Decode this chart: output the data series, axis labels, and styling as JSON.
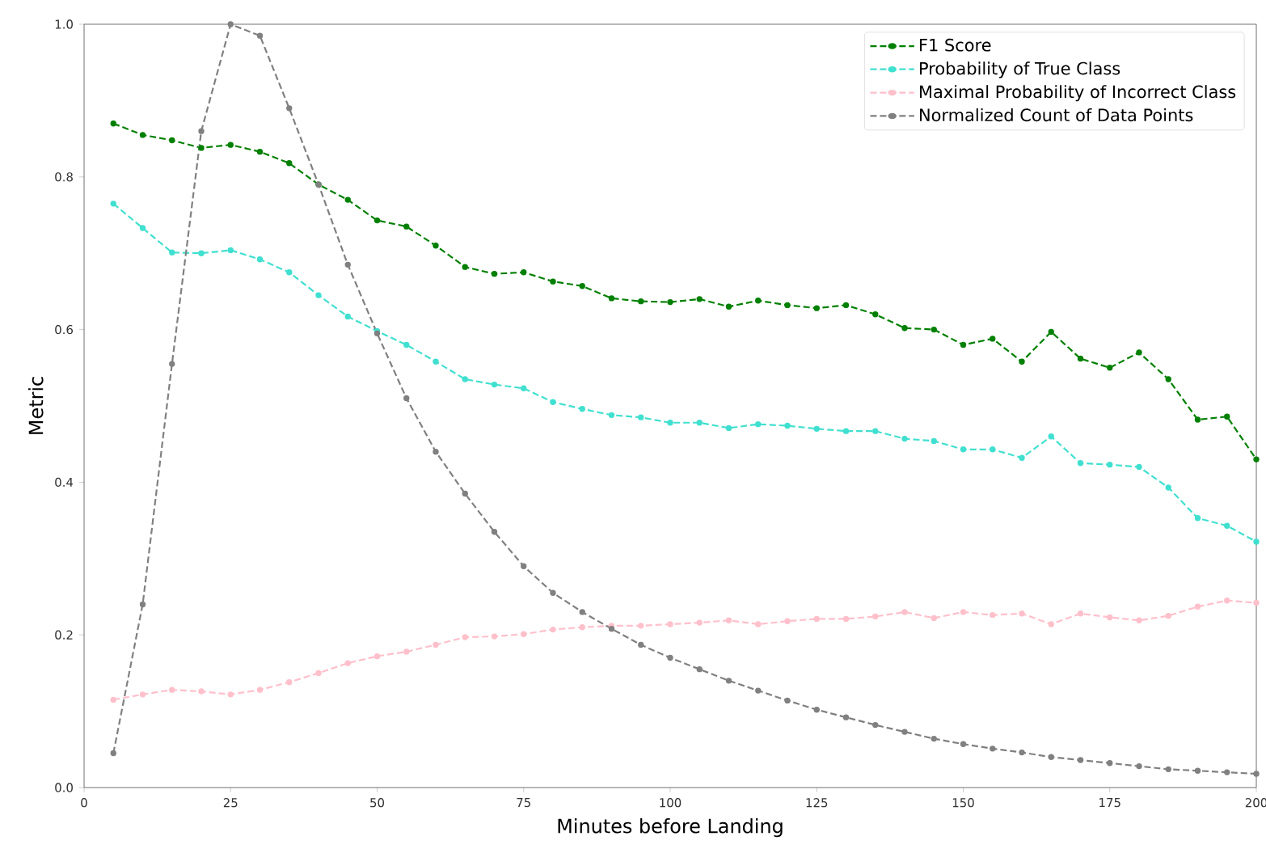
{
  "chart_data": {
    "type": "line",
    "xlabel": "Minutes before Landing",
    "ylabel": "Metric",
    "x": [
      5,
      10,
      15,
      20,
      25,
      30,
      35,
      40,
      45,
      50,
      55,
      60,
      65,
      70,
      75,
      80,
      85,
      90,
      95,
      100,
      105,
      110,
      115,
      120,
      125,
      130,
      135,
      140,
      145,
      150,
      155,
      160,
      165,
      170,
      175,
      180,
      185,
      190,
      195,
      200
    ],
    "series": [
      {
        "name": "F1 Score",
        "color": "#008000",
        "values": [
          0.87,
          0.855,
          0.848,
          0.838,
          0.842,
          0.833,
          0.818,
          0.79,
          0.77,
          0.743,
          0.735,
          0.71,
          0.682,
          0.673,
          0.675,
          0.663,
          0.657,
          0.641,
          0.637,
          0.636,
          0.64,
          0.63,
          0.638,
          0.632,
          0.628,
          0.632,
          0.62,
          0.602,
          0.6,
          0.58,
          0.588,
          0.558,
          0.597,
          0.562,
          0.55,
          0.57,
          0.535,
          0.482,
          0.486,
          0.43
        ]
      },
      {
        "name": "Probability of True Class",
        "color": "#40e0d0",
        "values": [
          0.765,
          0.733,
          0.701,
          0.7,
          0.704,
          0.692,
          0.675,
          0.645,
          0.617,
          0.598,
          0.58,
          0.558,
          0.535,
          0.528,
          0.523,
          0.505,
          0.496,
          0.488,
          0.485,
          0.478,
          0.478,
          0.471,
          0.476,
          0.474,
          0.47,
          0.467,
          0.467,
          0.457,
          0.454,
          0.443,
          0.443,
          0.432,
          0.46,
          0.425,
          0.423,
          0.42,
          0.393,
          0.353,
          0.343,
          0.322
        ]
      },
      {
        "name": "Maximal Probability of Incorrect Class",
        "color": "#ffc0cb",
        "values": [
          0.115,
          0.122,
          0.128,
          0.126,
          0.122,
          0.128,
          0.138,
          0.15,
          0.163,
          0.172,
          0.178,
          0.187,
          0.197,
          0.198,
          0.201,
          0.207,
          0.21,
          0.212,
          0.212,
          0.214,
          0.216,
          0.219,
          0.214,
          0.218,
          0.221,
          0.221,
          0.224,
          0.23,
          0.222,
          0.23,
          0.226,
          0.228,
          0.214,
          0.228,
          0.223,
          0.219,
          0.225,
          0.237,
          0.245,
          0.242
        ]
      },
      {
        "name": "Normalized Count of Data Points",
        "color": "#808080",
        "values": [
          0.045,
          0.24,
          0.555,
          0.86,
          1.0,
          0.985,
          0.89,
          0.79,
          0.685,
          0.595,
          0.51,
          0.44,
          0.385,
          0.335,
          0.29,
          0.255,
          0.23,
          0.208,
          0.187,
          0.17,
          0.155,
          0.14,
          0.127,
          0.114,
          0.102,
          0.092,
          0.082,
          0.073,
          0.064,
          0.057,
          0.051,
          0.046,
          0.04,
          0.036,
          0.032,
          0.028,
          0.024,
          0.022,
          0.02,
          0.018
        ]
      }
    ],
    "xlim": [
      0,
      200
    ],
    "xticks": [
      0,
      25,
      50,
      75,
      100,
      125,
      150,
      175,
      200
    ],
    "ylim": [
      0,
      1.0
    ],
    "yticks": [
      {
        "value": 0,
        "label": "0.0"
      },
      {
        "value": 0.2,
        "label": "0.2"
      },
      {
        "value": 0.4,
        "label": "0.4"
      },
      {
        "value": 0.6,
        "label": "0.6"
      },
      {
        "value": 0.8,
        "label": "0.8"
      },
      {
        "value": 1.0,
        "label": "1.0"
      }
    ],
    "legend": "top right",
    "marker": "circle",
    "line_style": "dashed",
    "grid": false
  }
}
